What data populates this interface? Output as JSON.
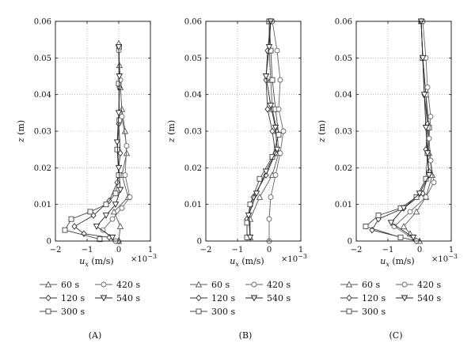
{
  "chart_data": [
    {
      "type": "line",
      "panel_label": "(A)",
      "xlabel_symbol": "u",
      "xlabel_subscript": "x",
      "xlabel_unit": " (m/s)",
      "x_scale_note": "×10",
      "x_scale_exponent": "−3",
      "ylabel_symbol": "z",
      "ylabel_unit": " (m)",
      "xlim": [
        -2,
        1
      ],
      "ylim": [
        0,
        0.06
      ],
      "xticks": [
        "−2",
        "−1",
        "0",
        "1"
      ],
      "yticks": [
        "0",
        "0.01",
        "0.02",
        "0.03",
        "0.04",
        "0.05",
        "0.06"
      ],
      "grid": true,
      "series": [
        {
          "name": "60 s",
          "marker": "triangle-up",
          "color": "#555555",
          "x": [
            0,
            0.05,
            -0.15,
            0.3,
            0.1,
            0.25,
            0.2,
            0.1,
            0.05,
            0.02,
            0.0
          ],
          "z": [
            0,
            0.004,
            0.008,
            0.012,
            0.018,
            0.024,
            0.03,
            0.036,
            0.042,
            0.048,
            0.054
          ]
        },
        {
          "name": "120 s",
          "marker": "diamond",
          "color": "#333333",
          "x": [
            0,
            -0.3,
            -1.1,
            -1.4,
            -0.8,
            -0.3,
            -0.05,
            0.05,
            0.0,
            0.02,
            0.0
          ],
          "z": [
            0,
            0.001,
            0.002,
            0.004,
            0.007,
            0.011,
            0.016,
            0.024,
            0.032,
            0.042,
            0.052
          ]
        },
        {
          "name": "300 s",
          "marker": "square",
          "color": "#444444",
          "x": [
            -0.6,
            -1.7,
            -1.5,
            -0.9,
            -0.4,
            -0.1,
            0.0,
            -0.05,
            0.02,
            0.0,
            0.01
          ],
          "z": [
            0.0005,
            0.003,
            0.006,
            0.008,
            0.01,
            0.013,
            0.018,
            0.025,
            0.033,
            0.043,
            0.053
          ]
        },
        {
          "name": "420 s",
          "marker": "circle",
          "color": "#666666",
          "x": [
            -0.1,
            -0.5,
            -0.2,
            0.1,
            0.35,
            0.2,
            0.25,
            0.1,
            0.05,
            0.0
          ],
          "z": [
            0,
            0.003,
            0.006,
            0.009,
            0.012,
            0.018,
            0.026,
            0.034,
            0.044,
            0.052
          ]
        },
        {
          "name": "540 s",
          "marker": "triangle-down",
          "color": "#222222",
          "x": [
            -0.2,
            -0.7,
            -0.4,
            -0.1,
            0.05,
            0.0,
            -0.05,
            0.0,
            0.02,
            0.0
          ],
          "z": [
            0.001,
            0.004,
            0.007,
            0.01,
            0.014,
            0.02,
            0.027,
            0.035,
            0.045,
            0.053
          ]
        }
      ]
    },
    {
      "type": "line",
      "panel_label": "(B)",
      "xlabel_symbol": "u",
      "xlabel_subscript": "x",
      "xlabel_unit": " (m/s)",
      "x_scale_note": "×10",
      "x_scale_exponent": "−3",
      "ylabel_symbol": "z",
      "ylabel_unit": " (m)",
      "xlim": [
        -2,
        1
      ],
      "ylim": [
        0,
        0.06
      ],
      "xticks": [
        "−2",
        "−1",
        "0",
        "1"
      ],
      "yticks": [
        "0",
        "0.01",
        "0.02",
        "0.03",
        "0.04",
        "0.05",
        "0.06"
      ],
      "grid": true,
      "series": [
        {
          "name": "60 s",
          "marker": "triangle-up",
          "color": "#555555",
          "x": [
            -0.6,
            -0.6,
            -0.3,
            0.1,
            0.3,
            0.25,
            0.1,
            0.05,
            0.0,
            0.0
          ],
          "z": [
            0.001,
            0.006,
            0.012,
            0.018,
            0.024,
            0.03,
            0.036,
            0.044,
            0.052,
            0.06
          ]
        },
        {
          "name": "120 s",
          "marker": "diamond",
          "color": "#333333",
          "x": [
            -0.7,
            -0.7,
            -0.5,
            -0.1,
            0.2,
            0.1,
            -0.05,
            -0.1,
            -0.05,
            0.05
          ],
          "z": [
            0.001,
            0.006,
            0.012,
            0.018,
            0.024,
            0.03,
            0.036,
            0.044,
            0.052,
            0.06
          ]
        },
        {
          "name": "300 s",
          "marker": "square",
          "color": "#444444",
          "x": [
            -0.7,
            -0.7,
            -0.6,
            -0.3,
            0.1,
            0.3,
            0.2,
            0.1,
            0.05,
            0.0
          ],
          "z": [
            0.001,
            0.005,
            0.01,
            0.017,
            0.023,
            0.029,
            0.036,
            0.044,
            0.052,
            0.06
          ]
        },
        {
          "name": "420 s",
          "marker": "circle",
          "color": "#666666",
          "x": [
            0.0,
            0.0,
            0.05,
            0.2,
            0.35,
            0.45,
            0.3,
            0.35,
            0.25,
            0.1
          ],
          "z": [
            0,
            0.006,
            0.012,
            0.018,
            0.024,
            0.03,
            0.036,
            0.044,
            0.052,
            0.06
          ]
        },
        {
          "name": "540 s",
          "marker": "triangle-down",
          "color": "#222222",
          "x": [
            -0.6,
            -0.65,
            -0.4,
            -0.1,
            0.25,
            0.2,
            0.05,
            -0.1,
            0.0,
            0.05
          ],
          "z": [
            0.001,
            0.007,
            0.013,
            0.019,
            0.025,
            0.031,
            0.037,
            0.045,
            0.053,
            0.06
          ]
        }
      ]
    },
    {
      "type": "line",
      "panel_label": "(C)",
      "xlabel_symbol": "u",
      "xlabel_subscript": "x",
      "xlabel_unit": " (m/s)",
      "x_scale_note": "×10",
      "x_scale_exponent": "−3",
      "ylabel_symbol": "z",
      "ylabel_unit": " (m)",
      "xlim": [
        -2,
        1
      ],
      "ylim": [
        0,
        0.06
      ],
      "xticks": [
        "−2",
        "−1",
        "0",
        "1"
      ],
      "yticks": [
        "0",
        "0.01",
        "0.02",
        "0.03",
        "0.04",
        "0.05",
        "0.06"
      ],
      "grid": true,
      "series": [
        {
          "name": "60 s",
          "marker": "triangle-up",
          "color": "#555555",
          "x": [
            0,
            -0.3,
            -0.5,
            -0.1,
            0.2,
            0.4,
            0.3,
            0.25,
            0.2,
            0.1,
            0.05
          ],
          "z": [
            0,
            0.002,
            0.004,
            0.008,
            0.012,
            0.018,
            0.024,
            0.032,
            0.04,
            0.05,
            0.06
          ]
        },
        {
          "name": "120 s",
          "marker": "diamond",
          "color": "#333333",
          "x": [
            -0.1,
            -1.5,
            -1.3,
            -0.5,
            0.1,
            0.3,
            0.2,
            0.25,
            0.15,
            0.1,
            0.05
          ],
          "z": [
            0,
            0.003,
            0.006,
            0.009,
            0.013,
            0.019,
            0.025,
            0.032,
            0.04,
            0.05,
            0.06
          ]
        },
        {
          "name": "300 s",
          "marker": "square",
          "color": "#444444",
          "x": [
            -0.6,
            -1.7,
            -1.3,
            -0.6,
            -0.1,
            0.2,
            0.25,
            0.3,
            0.2,
            0.1,
            0.05
          ],
          "z": [
            0.001,
            0.004,
            0.007,
            0.009,
            0.012,
            0.017,
            0.024,
            0.031,
            0.04,
            0.05,
            0.06
          ]
        },
        {
          "name": "420 s",
          "marker": "circle",
          "color": "#666666",
          "x": [
            -0.1,
            -0.8,
            -0.3,
            0.2,
            0.45,
            0.35,
            0.3,
            0.35,
            0.25,
            0.2,
            0.1
          ],
          "z": [
            0,
            0.004,
            0.008,
            0.012,
            0.016,
            0.022,
            0.028,
            0.034,
            0.042,
            0.05,
            0.06
          ]
        },
        {
          "name": "540 s",
          "marker": "triangle-down",
          "color": "#222222",
          "x": [
            -0.2,
            -0.9,
            -0.5,
            0.0,
            0.3,
            0.25,
            0.2,
            0.15,
            0.1,
            0.05
          ],
          "z": [
            0.001,
            0.005,
            0.009,
            0.013,
            0.018,
            0.024,
            0.031,
            0.04,
            0.05,
            0.06
          ]
        }
      ]
    }
  ]
}
